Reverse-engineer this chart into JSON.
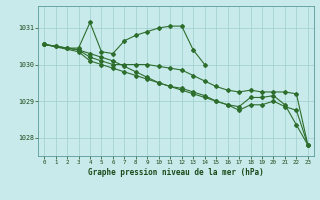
{
  "background_color": "#c8eaea",
  "grid_color": "#9ecece",
  "line_color": "#2d6e2d",
  "title": "Graphe pression niveau de la mer (hPa)",
  "xlim": [
    -0.5,
    23.5
  ],
  "ylim": [
    1027.5,
    1031.6
  ],
  "yticks": [
    1028,
    1029,
    1030,
    1031
  ],
  "xticks": [
    0,
    1,
    2,
    3,
    4,
    5,
    6,
    7,
    8,
    9,
    10,
    11,
    12,
    13,
    14,
    15,
    16,
    17,
    18,
    19,
    20,
    21,
    22,
    23
  ],
  "series": [
    {
      "x": [
        0,
        1,
        2,
        3,
        4,
        5,
        6,
        7,
        8,
        9,
        10,
        11,
        12,
        13,
        14
      ],
      "y": [
        1030.55,
        1030.5,
        1030.45,
        1030.45,
        1031.15,
        1030.35,
        1030.3,
        1030.65,
        1030.8,
        1030.9,
        1031.0,
        1031.05,
        1031.05,
        1030.4,
        1030.0
      ]
    },
    {
      "x": [
        0,
        1,
        2,
        3,
        4,
        5,
        6,
        7,
        8,
        9,
        10,
        11,
        12,
        13,
        14,
        15,
        16,
        17,
        18,
        19,
        20,
        21,
        22,
        23
      ],
      "y": [
        1030.55,
        1030.5,
        1030.45,
        1030.4,
        1030.3,
        1030.2,
        1030.1,
        1029.95,
        1029.8,
        1029.65,
        1029.5,
        1029.4,
        1029.3,
        1029.2,
        1029.1,
        1029.0,
        1028.9,
        1028.85,
        1029.1,
        1029.1,
        1029.15,
        1028.9,
        1028.35,
        1027.8
      ]
    },
    {
      "x": [
        0,
        3,
        4,
        5,
        6,
        7,
        8,
        9,
        10,
        11,
        12,
        13,
        14,
        15,
        16,
        17,
        18,
        19,
        20,
        21,
        22,
        23
      ],
      "y": [
        1030.55,
        1030.4,
        1030.2,
        1030.1,
        1030.0,
        1030.0,
        1030.0,
        1030.0,
        1029.95,
        1029.9,
        1029.85,
        1029.7,
        1029.55,
        1029.4,
        1029.3,
        1029.25,
        1029.3,
        1029.25,
        1029.25,
        1029.25,
        1029.2,
        1027.8
      ]
    },
    {
      "x": [
        0,
        3,
        4,
        5,
        6,
        7,
        8,
        9,
        10,
        11,
        12,
        13,
        14,
        15,
        16,
        17,
        18,
        19,
        20,
        21,
        22,
        23
      ],
      "y": [
        1030.55,
        1030.35,
        1030.1,
        1030.0,
        1029.9,
        1029.8,
        1029.7,
        1029.6,
        1029.5,
        1029.4,
        1029.35,
        1029.25,
        1029.15,
        1029.0,
        1028.9,
        1028.75,
        1028.9,
        1028.9,
        1029.0,
        1028.85,
        1028.75,
        1027.8
      ]
    }
  ]
}
